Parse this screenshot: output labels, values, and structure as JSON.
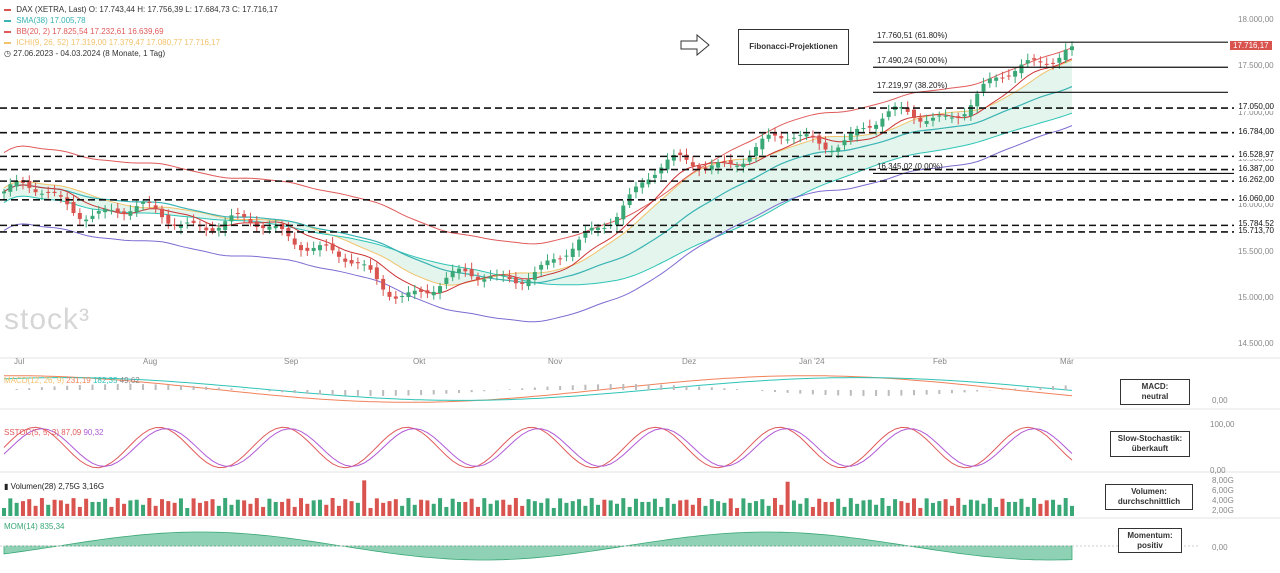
{
  "legend": {
    "main": {
      "symbol": "DAX (XETRA, Last)",
      "open": "O: 17.743,44",
      "high": "H: 17.756,39",
      "low": "L: 17.684,73",
      "close": "C: 17.716,17"
    },
    "sma": {
      "label": "SMA(38)",
      "value": "17.005,78",
      "color": "#39b3b3"
    },
    "bb": {
      "label": "BB(20, 2)",
      "v1": "17.825,54",
      "v2": "17.232,61",
      "v3": "16.639,69",
      "color": "#e05a5a"
    },
    "ichi": {
      "label": "ICHI(9, 26, 52)",
      "v1": "17.319,00",
      "v2": "17.379,47",
      "v3": "17.080,77",
      "v4": "17.716,17",
      "color": "#f2c26b"
    },
    "period": "27.06.2023 - 04.03.2024",
    "period_note": "(8 Monate, 1 Tag)"
  },
  "watermark": "stock³",
  "annotations": {
    "fibonacci": "Fibonacci-Projektionen",
    "macd": "MACD:\nneutral",
    "stoch": "Slow-Stochastik:\nüberkauft",
    "volume": "Volumen:\ndurchschnittlich",
    "momentum": "Momentum:\npositiv"
  },
  "fibonacci_levels": [
    {
      "label": "17.760,51 (61.80%)",
      "value": 17760.51
    },
    {
      "label": "17.490,24 (50.00%)",
      "value": 17490.24
    },
    {
      "label": "17.219,97 (38.20%)",
      "value": 17219.97
    },
    {
      "label": "16.345,02 (0.00%)",
      "value": 16345.02
    }
  ],
  "horizontal_levels": [
    {
      "label": "17.050,00",
      "value": 17050.0
    },
    {
      "label": "16.784,00",
      "value": 16784.0
    },
    {
      "label": "16.528,97",
      "value": 16528.97
    },
    {
      "label": "16.387,00",
      "value": 16387.0
    },
    {
      "label": "16.262,00",
      "value": 16262.0
    },
    {
      "label": "16.060,00",
      "value": 16060.0
    },
    {
      "label": "15.784,52",
      "value": 15784.52
    },
    {
      "label": "15.713,70",
      "value": 15713.7
    }
  ],
  "price_axis": [
    "18.000,00",
    "17.500,00",
    "17.000,00",
    "16.500,00",
    "16.000,00",
    "15.500,00",
    "15.000,00",
    "14.500,00"
  ],
  "last_price_label": "17.716,17",
  "x_axis": [
    "Jul",
    "Aug",
    "Sep",
    "Okt",
    "Nov",
    "Dez",
    "Jan '24",
    "Feb",
    "Mär"
  ],
  "panels": {
    "macd": {
      "label": "MACD(12, 26, 9)",
      "v1": "231,19",
      "v2": "182,35",
      "v3": "49,62",
      "axis": [
        "0,00"
      ]
    },
    "stoch": {
      "label": "SSTOC(5, 5, 3)",
      "v1": "87,09",
      "v2": "90,32",
      "axis": [
        "100,00",
        "0,00"
      ]
    },
    "volume": {
      "label": "Volumen(28)",
      "v1": "2,75G",
      "v2": "3,16G",
      "axis": [
        "8,00G",
        "6,00G",
        "4,00G",
        "2,00G"
      ]
    },
    "momentum": {
      "label": "MOM(14)",
      "v1": "835,34",
      "axis": [
        "0,00"
      ]
    }
  },
  "colors": {
    "up": "#3aa876",
    "down": "#d9534f",
    "sma": "#39b3b3",
    "bb": "#e05a5a",
    "bb_mid": "#cc3333",
    "ichi_a": "#f2c26b",
    "ichi_b": "#2ec4b6",
    "cloud_up": "#d7f1e6",
    "cloud_down": "#f6dcd8",
    "purple": "#7e6bd1",
    "orange": "#f0825a"
  },
  "chart_data": {
    "type": "candlestick",
    "title": "DAX (XETRA, Last)",
    "x_range": [
      "2023-06-27",
      "2024-03-04"
    ],
    "y_range": [
      14300,
      18050
    ],
    "close_path_approx": [
      {
        "month": "Jul",
        "value": 16150
      },
      {
        "month": "Aug",
        "value": 15900
      },
      {
        "month": "Sep",
        "value": 15750
      },
      {
        "month": "Okt",
        "value": 15100
      },
      {
        "month": "Nov",
        "value": 15300
      },
      {
        "month": "Dez",
        "value": 16400
      },
      {
        "month": "Jan '24",
        "value": 16700
      },
      {
        "month": "Feb",
        "value": 17000
      },
      {
        "month": "Mär",
        "value": 17716
      }
    ]
  }
}
